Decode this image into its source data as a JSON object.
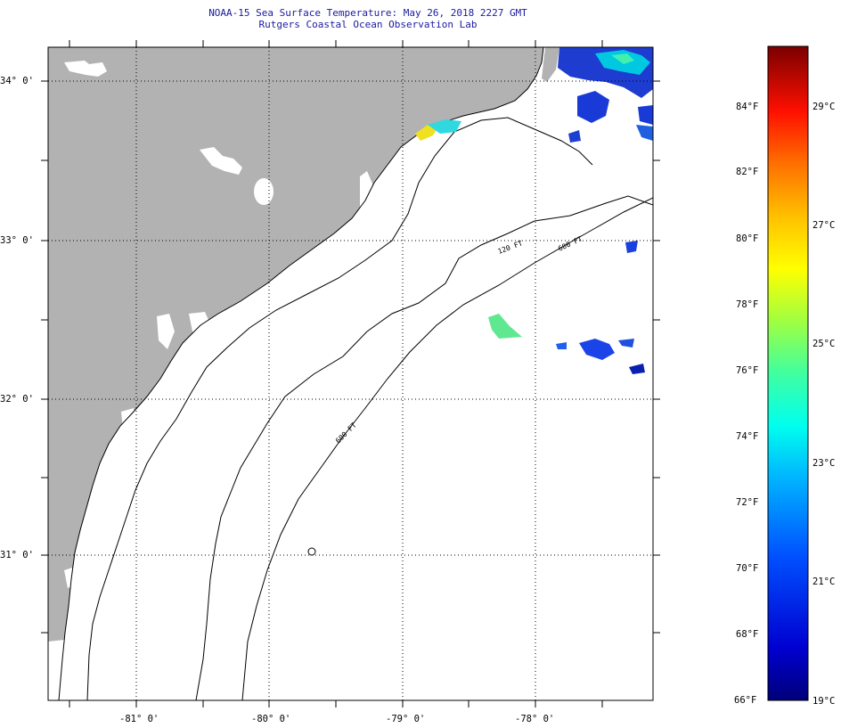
{
  "header": {
    "title": "NOAA-15 Sea Surface Temperature:  May 26, 2018 2227 GMT",
    "subtitle": "Rutgers Coastal Ocean Observation Lab"
  },
  "map": {
    "lat_ticks": [
      {
        "value": 34,
        "label": "34° 0'"
      },
      {
        "value": 33,
        "label": "33° 0'"
      },
      {
        "value": 32,
        "label": "32° 0'"
      },
      {
        "value": 31,
        "label": "31° 0'"
      }
    ],
    "lon_ticks": [
      {
        "value": -81,
        "label": "-81° 0'"
      },
      {
        "value": -80,
        "label": "-80° 0'"
      },
      {
        "value": -79,
        "label": "-79° 0'"
      },
      {
        "value": -78,
        "label": "-78° 0'"
      }
    ],
    "isobath_labels": [
      "120 FT",
      "600 FT",
      "600 FT"
    ],
    "colors": {
      "land": "#b2b2b2",
      "ocean": "#ffffff",
      "coastline": "#000000"
    }
  },
  "colorbar": {
    "fahrenheit_labels": [
      "84°F",
      "82°F",
      "80°F",
      "78°F",
      "76°F",
      "74°F",
      "72°F",
      "70°F",
      "68°F",
      "66°F"
    ],
    "celsius_labels": [
      "29°C",
      "27°C",
      "25°C",
      "23°C",
      "21°C",
      "19°C"
    ],
    "range_f": [
      66,
      86
    ],
    "range_c": [
      19,
      30
    ]
  }
}
